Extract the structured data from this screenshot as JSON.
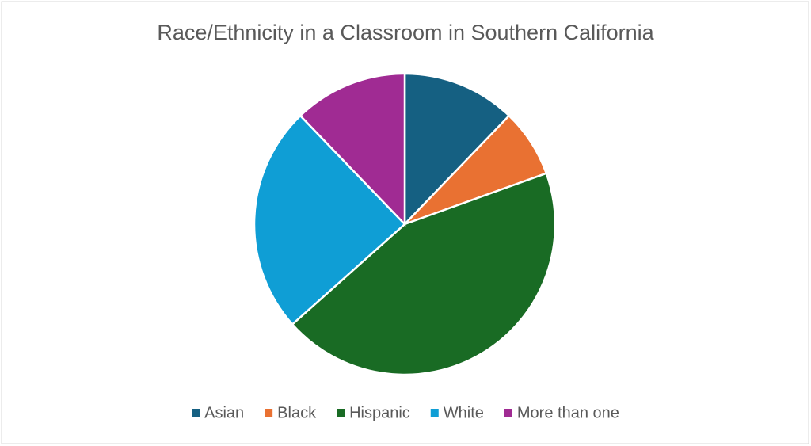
{
  "chart_data": {
    "type": "pie",
    "title": "Race/Ethnicity in a Classroom in Southern California",
    "categories": [
      "Asian",
      "Black",
      "Hispanic",
      "White",
      "More than one"
    ],
    "values": [
      5,
      3,
      18,
      10,
      5
    ],
    "colors": [
      "#156082",
      "#e97132",
      "#196b24",
      "#0f9ed5",
      "#a02b93"
    ],
    "legend": "bottom"
  }
}
